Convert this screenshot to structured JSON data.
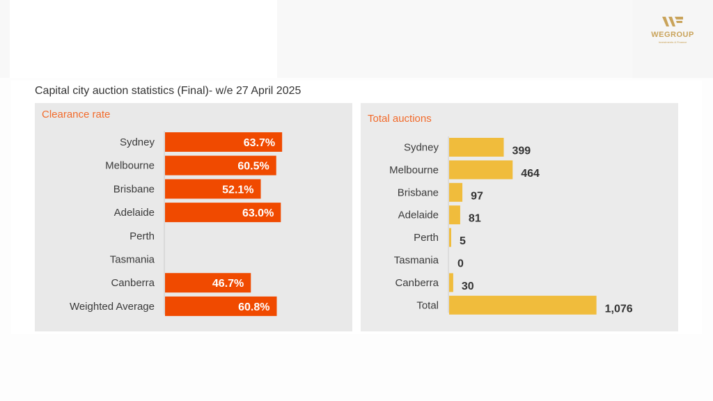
{
  "logo": {
    "name": "WEGROUP",
    "tagline": "Investments & Finance"
  },
  "heading": "Capital city auction statistics (Final)- w/e 27 April 2025",
  "colors": {
    "clearance_bar": "#f04a00",
    "auction_bar": "#f0bc3c",
    "panel_title": "#f26a2a"
  },
  "chart_data": [
    {
      "type": "bar",
      "orientation": "horizontal",
      "title": "Clearance rate",
      "unit": "%",
      "categories": [
        "Sydney",
        "Melbourne",
        "Brisbane",
        "Adelaide",
        "Perth",
        "Tasmania",
        "Canberra",
        "Weighted Average"
      ],
      "values": [
        63.7,
        60.5,
        52.1,
        63.0,
        null,
        null,
        46.7,
        60.8
      ],
      "value_labels": [
        "63.7%",
        "60.5%",
        "52.1%",
        "63.0%",
        "",
        "",
        "46.7%",
        "60.8%"
      ],
      "xlim": [
        0,
        100
      ]
    },
    {
      "type": "bar",
      "orientation": "horizontal",
      "title": "Total auctions",
      "categories": [
        "Sydney",
        "Melbourne",
        "Brisbane",
        "Adelaide",
        "Perth",
        "Tasmania",
        "Canberra",
        "Total"
      ],
      "values": [
        399,
        464,
        97,
        81,
        5,
        0,
        30,
        1076
      ],
      "value_labels": [
        "399",
        "464",
        "97",
        "81",
        "5",
        "0",
        "30",
        "1,076"
      ],
      "xlim": [
        0,
        1200
      ]
    }
  ]
}
